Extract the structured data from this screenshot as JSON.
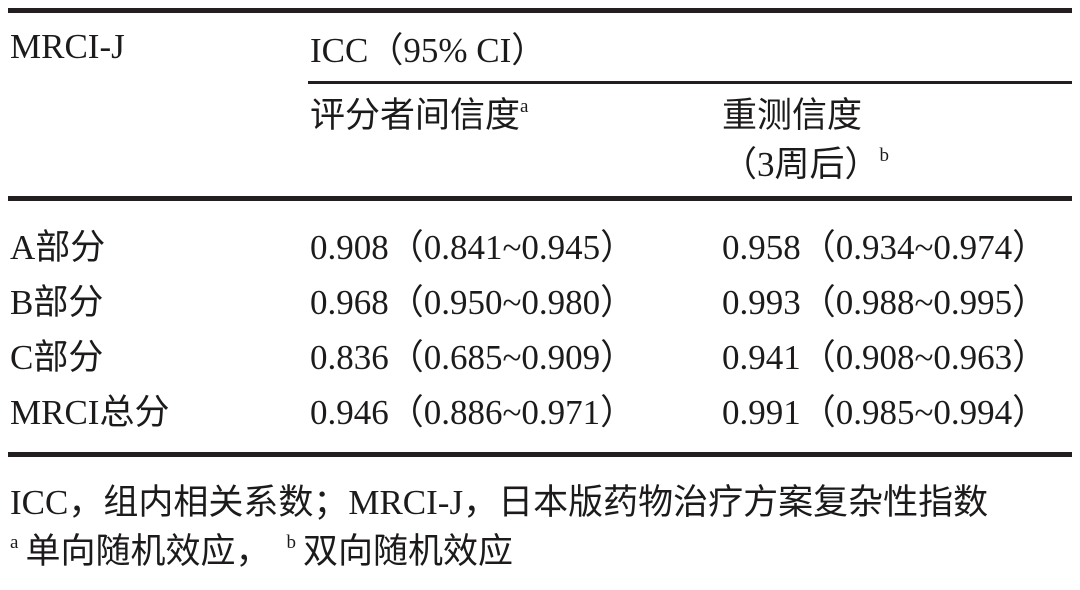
{
  "page": {
    "background_color": "#ffffff",
    "text_color": "#1c1a1a",
    "rule_color": "#231f20"
  },
  "table": {
    "stub_header": "MRCI-J",
    "spanner_header": "ICC（95% CI）",
    "columns": [
      {
        "label": "评分者间信度",
        "superscript": "a"
      },
      {
        "label_line1": "重测信度",
        "label_line2": "（3周后）",
        "superscript": "b"
      }
    ],
    "rows": [
      {
        "label": "A部分",
        "inter_rater": "0.908（0.841~0.945）",
        "test_retest": "0.958（0.934~0.974）"
      },
      {
        "label": "B部分",
        "inter_rater": "0.968（0.950~0.980）",
        "test_retest": "0.993（0.988~0.995）"
      },
      {
        "label": "C部分",
        "inter_rater": "0.836（0.685~0.909）",
        "test_retest": "0.941（0.908~0.963）"
      },
      {
        "label": "MRCI总分",
        "inter_rater": "0.946（0.886~0.971）",
        "test_retest": "0.991（0.985~0.994）"
      }
    ],
    "footnotes": {
      "abbreviations": "ICC，组内相关系数；MRCI-J，日本版药物治疗方案复杂性指数",
      "sup_a": "a",
      "text_a": "单向随机效应，",
      "sup_b": "b",
      "text_b": "双向随机效应"
    }
  }
}
